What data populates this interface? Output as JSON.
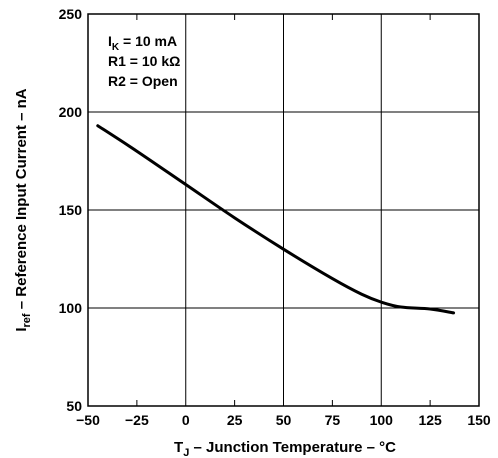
{
  "chart_data": {
    "type": "line",
    "title": "",
    "xlabel": {
      "main": "T",
      "sub": "J",
      "rest": " – Junction Temperature – °C"
    },
    "ylabel": {
      "main": "I",
      "sub": "ref",
      "rest": " – Reference Input Current – nA"
    },
    "xlim": [
      -50,
      150
    ],
    "ylim": [
      50,
      250
    ],
    "x_ticks": [
      -50,
      -25,
      0,
      25,
      50,
      75,
      100,
      125,
      150
    ],
    "x_tick_labels": [
      "−50",
      "−25",
      "0",
      "25",
      "50",
      "75",
      "100",
      "125",
      "150"
    ],
    "y_ticks": [
      50,
      100,
      150,
      200,
      250
    ],
    "y_tick_labels": [
      "50",
      "100",
      "150",
      "200",
      "250"
    ],
    "grid": true,
    "annotations": [
      {
        "main": "I",
        "sub": "K",
        "rest": " = 10 mA"
      },
      {
        "main": "R1 = 10 kΩ",
        "sub": "",
        "rest": ""
      },
      {
        "main": "R2 = Open",
        "sub": "",
        "rest": ""
      }
    ],
    "series": [
      {
        "x": [
          -45,
          -25,
          0,
          25,
          50,
          75,
          90,
          100,
          110,
          125,
          137
        ],
        "y": [
          193,
          180,
          163,
          146,
          130,
          115,
          107,
          103,
          100.5,
          99.5,
          97.5
        ]
      }
    ]
  }
}
